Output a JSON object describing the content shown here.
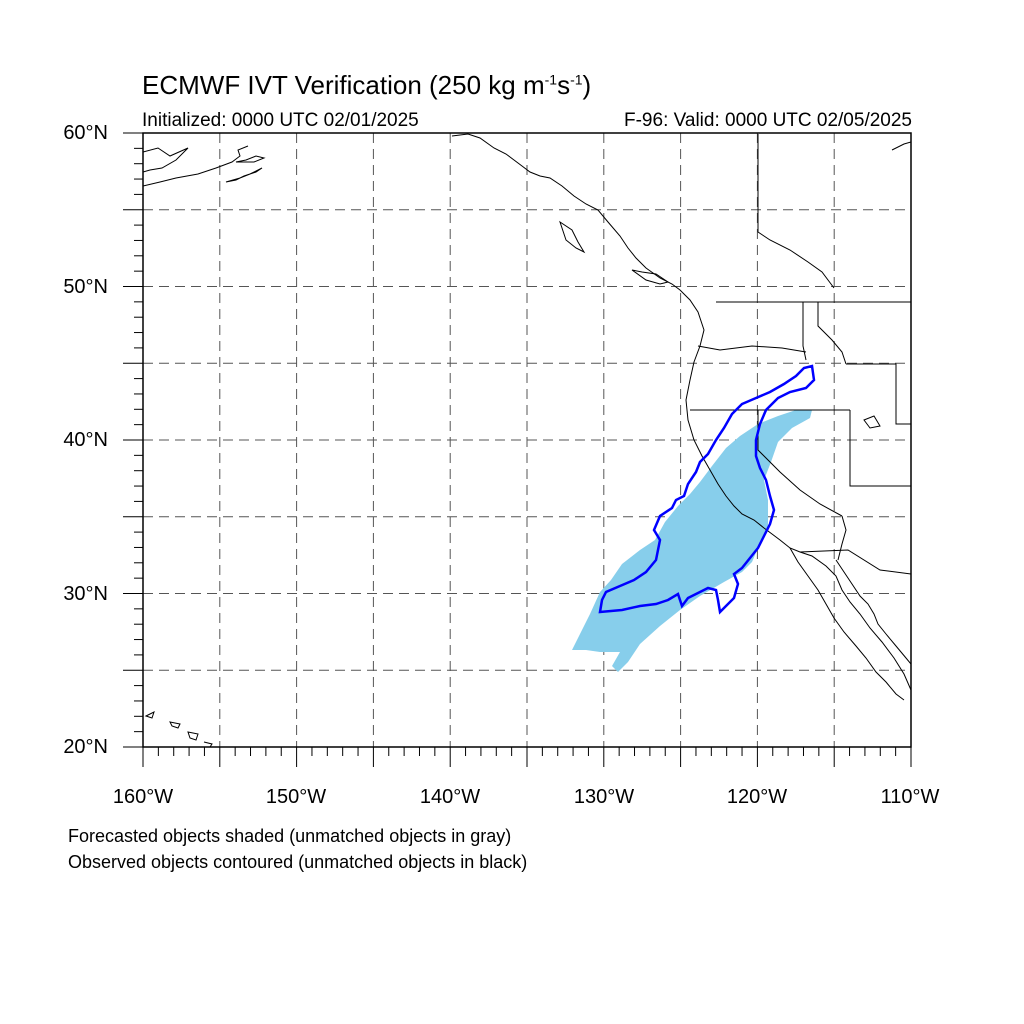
{
  "title": {
    "main": "ECMWF IVT Verification (250 kg m",
    "exp1": "-1",
    "mid": "s",
    "exp2": "-1",
    "end": ")"
  },
  "init_text": "Initialized: 0000 UTC 02/01/2025",
  "valid_text": "F-96: Valid: 0000 UTC 02/05/2025",
  "lat_labels": [
    "60°N",
    "50°N",
    "40°N",
    "30°N",
    "20°N"
  ],
  "lon_labels": [
    "160°W",
    "150°W",
    "140°W",
    "130°W",
    "120°W",
    "110°W"
  ],
  "caption_line1": "Forecasted objects shaded (unmatched objects in gray)",
  "caption_line2": "Observed objects contoured (unmatched objects in black)",
  "colors": {
    "forecast_fill": "#87ceeb",
    "observed_contour": "#0000ff",
    "coast": "#000000",
    "grid": "#555555"
  },
  "map_extent": {
    "lon": [
      -160,
      -110
    ],
    "lat": [
      20,
      60
    ]
  }
}
